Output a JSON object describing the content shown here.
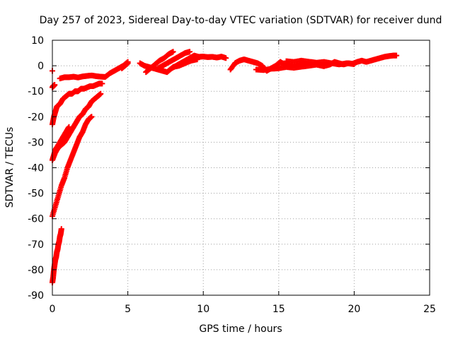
{
  "chart_data": {
    "type": "scatter",
    "title": "Day 257 of 2023, Sidereal Day-to-day VTEC variation (SDTVAR) for receiver dund",
    "xlabel": "GPS time / hours",
    "ylabel": "SDTVAR / TECUs",
    "xlim": [
      0,
      25
    ],
    "ylim": [
      -90,
      10
    ],
    "xticks": [
      0,
      5,
      10,
      15,
      20,
      25
    ],
    "yticks": [
      -90,
      -80,
      -70,
      -60,
      -50,
      -40,
      -30,
      -20,
      -10,
      0,
      10
    ],
    "grid": true,
    "marker": "+",
    "series": [
      {
        "name": "SDTVAR",
        "color": "#ff0000",
        "segments": [
          {
            "x": [
              0.0,
              0.05,
              0.1,
              0.15,
              0.2,
              0.25,
              0.3,
              0.35,
              0.4,
              0.45,
              0.5,
              0.55,
              0.6
            ],
            "y": [
              -85,
              -83,
              -80,
              -78,
              -76,
              -75,
              -73,
              -72,
              -70,
              -69,
              -67,
              -66,
              -64
            ]
          },
          {
            "x": [
              0.0,
              0.2,
              0.4,
              0.6,
              0.8,
              1.0,
              1.2,
              1.4,
              1.6,
              1.8,
              2.0,
              2.2,
              2.4,
              2.6
            ],
            "y": [
              -59,
              -55,
              -51,
              -47,
              -44,
              -40,
              -37,
              -34,
              -31,
              -28,
              -26,
              -23,
              -21,
              -20
            ]
          },
          {
            "x": [
              0.0,
              0.2,
              0.4,
              0.6,
              0.8,
              1.0,
              1.2,
              1.4,
              1.6,
              1.8,
              2.0,
              2.2,
              2.4,
              2.6,
              2.8,
              3.0,
              3.2
            ],
            "y": [
              -37,
              -34,
              -32,
              -31,
              -30,
              -28,
              -26,
              -24,
              -22,
              -20,
              -19,
              -17,
              -16,
              -14,
              -13,
              -12,
              -11
            ]
          },
          {
            "x": [
              0.0,
              0.1,
              0.2,
              0.3,
              0.5,
              0.7,
              0.9,
              1.1
            ],
            "y": [
              -37,
              -35,
              -33,
              -32,
              -30,
              -28,
              -26,
              -24
            ]
          },
          {
            "x": [
              0.0,
              0.1,
              0.2,
              0.3,
              0.5,
              0.7,
              0.9,
              1.1,
              1.3,
              1.5,
              1.7,
              1.9,
              2.1,
              2.3,
              2.5,
              2.7,
              2.9,
              3.1,
              3.3
            ],
            "y": [
              -23,
              -20,
              -18,
              -16,
              -15,
              -13,
              -12,
              -11,
              -11,
              -10,
              -10,
              -9,
              -9,
              -8.5,
              -8,
              -8,
              -7.5,
              -7,
              -7
            ]
          },
          {
            "x": [
              0.0,
              0.05,
              0.1,
              0.15
            ],
            "y": [
              -8.5,
              -8,
              -7.8,
              -7.5
            ]
          },
          {
            "x": [
              0.0
            ],
            "y": [
              -2
            ]
          },
          {
            "x": [
              0.5,
              0.8,
              1.1,
              1.4,
              1.7,
              2.0,
              2.3,
              2.6,
              2.9,
              3.2,
              3.5,
              3.8,
              4.1,
              4.4,
              4.7,
              5.0
            ],
            "y": [
              -5,
              -4.5,
              -4.5,
              -4.3,
              -4.6,
              -4.2,
              -4.0,
              -3.8,
              -4.1,
              -4.3,
              -4.4,
              -3.0,
              -2.0,
              -1.0,
              0.0,
              1.5
            ]
          },
          {
            "x": [
              4.6,
              4.8,
              5.0
            ],
            "y": [
              -1,
              0,
              1
            ]
          },
          {
            "x": [
              5.8,
              6.1,
              6.4,
              6.7,
              7.0,
              7.3,
              7.6,
              7.9,
              8.2,
              8.5,
              8.8,
              9.1,
              9.4,
              9.7,
              10.0,
              10.3,
              10.6,
              10.9,
              11.2,
              11.5
            ],
            "y": [
              1,
              0,
              -0.5,
              -1,
              -1.5,
              -2,
              -2.5,
              -1,
              0,
              1,
              2,
              3,
              4,
              3.5,
              3.6,
              3.4,
              3.5,
              3.2,
              3.6,
              3.0
            ]
          },
          {
            "x": [
              6.2,
              6.5,
              6.8,
              7.1,
              7.4,
              7.7,
              8.0
            ],
            "y": [
              -2.5,
              -1,
              0.5,
              2,
              3,
              4.5,
              5.5
            ]
          },
          {
            "x": [
              7.0,
              7.3,
              7.6,
              7.9,
              8.2,
              8.5,
              8.8,
              9.1
            ],
            "y": [
              -1,
              0,
              1,
              2,
              3,
              4,
              5,
              5.5
            ]
          },
          {
            "x": [
              8.0,
              8.4,
              8.8,
              9.2,
              9.6
            ],
            "y": [
              -0.5,
              0,
              1,
              2,
              2.5
            ]
          },
          {
            "x": [
              11.8,
              12.1,
              12.4,
              12.7,
              13.0,
              13.3,
              13.6,
              13.9,
              14.2,
              14.5,
              14.8,
              15.1,
              15.4,
              15.7,
              16.0,
              16.3,
              16.6,
              16.9,
              17.2,
              17.5,
              17.8,
              18.1,
              18.4,
              18.7,
              19.0,
              19.3,
              19.6,
              19.9,
              20.2,
              20.5,
              20.8,
              21.1,
              21.4,
              21.7,
              22.0,
              22.3,
              22.6,
              22.8
            ],
            "y": [
              -1.5,
              1,
              2,
              2.5,
              2,
              1.5,
              1,
              0,
              -2,
              -1,
              0,
              1.5,
              0.5,
              0,
              -0.5,
              0,
              0.5,
              1,
              0.5,
              1,
              0.5,
              0,
              0.5,
              1.5,
              1,
              0.5,
              1,
              0.8,
              1.5,
              2,
              1.5,
              2,
              2.5,
              3,
              3.5,
              3.8,
              4,
              4
            ]
          },
          {
            "x": [
              13.5,
              14.0,
              14.5,
              15.0,
              15.5,
              16.0,
              16.5,
              17.0,
              17.5,
              18.0
            ],
            "y": [
              -1.5,
              -1.7,
              -1.2,
              -1.0,
              -0.5,
              -0.8,
              -0.4,
              0,
              0.4,
              -0.2
            ]
          },
          {
            "x": [
              15.5,
              16.0,
              16.5,
              17.0,
              17.5,
              18.0,
              18.5,
              19.0,
              19.5,
              20.0
            ],
            "y": [
              1.8,
              1.5,
              2.0,
              1.6,
              1.2,
              1.5,
              1.0,
              0.5,
              1.0,
              0.6
            ]
          }
        ]
      }
    ]
  }
}
